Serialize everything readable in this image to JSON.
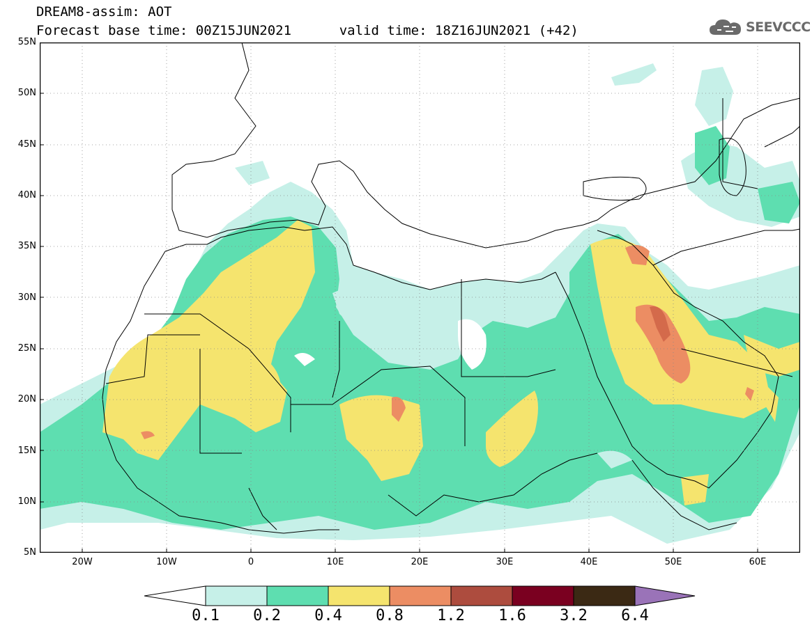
{
  "title": {
    "line1": "DREAM8-assim: AOT",
    "line2_base": "Forecast base time: 00Z15JUN2021",
    "line2_valid": "valid time: 18Z16JUN2021 (+42)"
  },
  "logo": {
    "text": "SEEVCCC",
    "icon": "cloud-icon"
  },
  "map": {
    "projection": "lat-lon",
    "lon_range": [
      -25,
      65
    ],
    "lat_range": [
      5,
      55
    ],
    "lat_labels": [
      "55N",
      "50N",
      "45N",
      "40N",
      "35N",
      "30N",
      "25N",
      "20N",
      "15N",
      "10N",
      "5N"
    ],
    "lon_labels": [
      "20W",
      "10W",
      "0",
      "10E",
      "20E",
      "30E",
      "40E",
      "50E",
      "60E"
    ],
    "field": "Aerosol Optical Thickness (AOT)"
  },
  "colorbar": {
    "ticks": [
      "0.1",
      "0.2",
      "0.4",
      "0.8",
      "1.2",
      "1.6",
      "3.2",
      "6.4"
    ],
    "colors": {
      "0.1-0.2": "#c6f0e8",
      "0.2-0.4": "#5edeb0",
      "0.4-0.8": "#f5e46e",
      "0.8-1.2": "#ec8d63",
      "1.2-1.6": "#ad4c3e",
      "1.6-3.2": "#7a0020",
      "3.2-6.4": "#3b2914",
      "above": "#9a73b8",
      "below": "#ffffff"
    }
  }
}
